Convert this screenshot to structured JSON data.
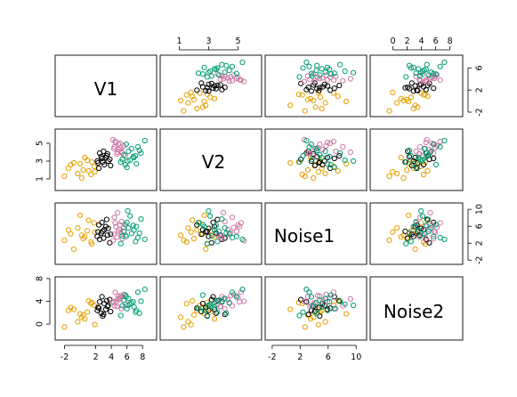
{
  "chart_data": {
    "type": "scatter",
    "title": "",
    "grid": false,
    "legend": "none",
    "variables": [
      "V1",
      "V2",
      "Noise1",
      "Noise2"
    ],
    "axes": {
      "V1": {
        "range": [
          -3.2,
          9.8
        ],
        "ticks": [
          -2,
          2,
          4,
          6,
          8
        ],
        "printed_on": "bottom"
      },
      "V2": {
        "range": [
          -0.3,
          6.6
        ],
        "ticks": [
          1,
          3,
          5
        ],
        "printed_on": "top-and-left"
      },
      "Noise1": {
        "range": [
          -3.0,
          11.5
        ],
        "ticks": [
          -2,
          2,
          6,
          10
        ],
        "printed_on": "bottom-and-right"
      },
      "Noise2": {
        "range": [
          -2.8,
          8.3
        ],
        "ticks": [
          0,
          4,
          8
        ],
        "printed_on": "left"
      },
      "Noise2_right": {
        "range": [
          -2.8,
          8.3
        ],
        "ticks": [
          -2,
          2,
          6
        ],
        "printed_on": "right"
      },
      "V1_top": {
        "range": [
          -3.2,
          9.8
        ],
        "ticks": [
          0,
          2,
          4,
          6,
          8
        ],
        "printed_on": "top"
      },
      "Noise1_left": {
        "range": [
          -3.0,
          11.5
        ],
        "ticks": [
          2,
          6,
          10
        ],
        "printed_on": "left"
      }
    },
    "series": [
      {
        "color": "#E69F00",
        "V1": [
          -1.2,
          0.4,
          1.5,
          -0.3,
          0.9,
          -2.0,
          1.8,
          0.2,
          -0.8,
          1.1,
          0.6,
          -1.5,
          1.4,
          0.0,
          1.9
        ],
        "V2": [
          2.6,
          2.0,
          2.9,
          1.6,
          3.1,
          1.3,
          2.4,
          1.1,
          2.8,
          1.9,
          3.4,
          2.2,
          1.5,
          2.7,
          1.8
        ],
        "Noise1": [
          4.2,
          3.1,
          1.8,
          5.6,
          4.9,
          2.7,
          6.8,
          3.9,
          0.6,
          7.4,
          3.5,
          5.1,
          2.3,
          8.6,
          4.6
        ],
        "Noise2": [
          2.9,
          1.6,
          3.8,
          0.4,
          2.1,
          -0.5,
          3.3,
          1.2,
          2.6,
          4.1,
          0.9,
          2.4,
          3.6,
          1.8,
          -0.1
        ]
      },
      {
        "color": "#000000",
        "V1": [
          2.2,
          3.1,
          2.7,
          3.8,
          2.4,
          3.5,
          2.9,
          3.3,
          2.5,
          3.9,
          2.8,
          3.0,
          3.6,
          2.3,
          3.4
        ],
        "V2": [
          3.0,
          2.6,
          3.5,
          3.2,
          2.2,
          3.8,
          2.9,
          3.4,
          3.9,
          2.5,
          3.3,
          4.1,
          3.0,
          2.8,
          3.6
        ],
        "Noise1": [
          3.6,
          5.2,
          4.4,
          2.1,
          6.3,
          3.9,
          4.8,
          5.9,
          2.9,
          4.1,
          6.9,
          3.2,
          5.5,
          4.7,
          7.6
        ],
        "Noise2": [
          2.4,
          3.6,
          1.9,
          4.3,
          2.8,
          3.1,
          1.4,
          2.6,
          3.9,
          2.2,
          4.8,
          1.7,
          3.3,
          2.9,
          4.1
        ]
      },
      {
        "color": "#CC79A7",
        "V1": [
          4.3,
          5.1,
          4.7,
          5.6,
          4.2,
          5.3,
          4.9,
          5.8,
          4.5,
          5.0,
          4.4,
          5.4,
          4.6,
          5.2,
          4.8
        ],
        "V2": [
          4.4,
          5.0,
          3.8,
          4.7,
          5.4,
          4.1,
          4.9,
          3.6,
          5.2,
          4.3,
          4.6,
          3.9,
          5.1,
          4.5,
          4.0
        ],
        "Noise1": [
          4.1,
          6.3,
          3.4,
          5.7,
          2.6,
          7.1,
          4.8,
          3.9,
          6.8,
          5.2,
          8.1,
          3.1,
          5.9,
          4.5,
          9.2
        ],
        "Noise2": [
          3.8,
          4.6,
          3.1,
          5.2,
          4.0,
          2.7,
          4.9,
          3.5,
          5.6,
          4.3,
          3.2,
          4.8,
          3.9,
          5.0,
          4.4
        ]
      },
      {
        "color": "#009E73",
        "V1": [
          5.4,
          6.2,
          7.1,
          5.8,
          6.6,
          7.8,
          5.2,
          6.9,
          7.4,
          6.0,
          5.6,
          8.3,
          6.4,
          7.2,
          5.9,
          6.8,
          7.6,
          6.1
        ],
        "V2": [
          3.2,
          4.1,
          3.6,
          2.6,
          4.4,
          3.9,
          2.9,
          3.4,
          4.6,
          2.3,
          3.7,
          5.3,
          3.1,
          2.7,
          4.9,
          3.5,
          4.2,
          3.0
        ],
        "Noise1": [
          3.7,
          5.6,
          2.4,
          6.4,
          4.3,
          7.7,
          1.9,
          5.1,
          3.3,
          6.9,
          4.8,
          2.9,
          8.4,
          5.9,
          3.6,
          6.2,
          4.4,
          9.6
        ],
        "Noise2": [
          3.2,
          4.5,
          2.1,
          5.1,
          3.7,
          4.0,
          1.5,
          3.0,
          5.6,
          2.7,
          4.2,
          6.1,
          3.5,
          2.4,
          4.8,
          3.9,
          1.9,
          3.3
        ]
      }
    ]
  }
}
